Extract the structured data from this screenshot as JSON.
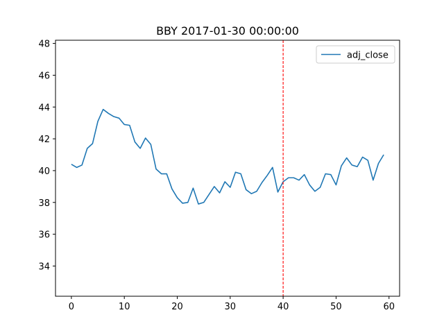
{
  "chart_data": {
    "type": "line",
    "title": "BBY 2017-01-30 00:00:00",
    "xlabel": "",
    "ylabel": "",
    "xlim": [
      -3,
      62
    ],
    "ylim": [
      32.1,
      48.2
    ],
    "xticks": [
      0,
      10,
      20,
      30,
      40,
      50,
      60
    ],
    "yticks": [
      34,
      36,
      38,
      40,
      42,
      44,
      46,
      48
    ],
    "grid": false,
    "legend_position": "top-right",
    "vline": {
      "x": 40,
      "color": "#ff0000",
      "style": "dashed"
    },
    "series": [
      {
        "name": "adj_close",
        "color": "#1f77b4",
        "x": [
          0,
          1,
          2,
          3,
          4,
          5,
          6,
          7,
          8,
          9,
          10,
          11,
          12,
          13,
          14,
          15,
          16,
          17,
          18,
          19,
          20,
          21,
          22,
          23,
          24,
          25,
          26,
          27,
          28,
          29,
          30,
          31,
          32,
          33,
          34,
          35,
          36,
          37,
          38,
          39,
          40,
          41,
          42,
          43,
          44,
          45,
          46,
          47,
          48,
          49,
          50,
          51,
          52,
          53,
          54,
          55,
          56,
          57,
          58,
          59
        ],
        "values": [
          40.4,
          40.2,
          40.35,
          41.4,
          41.7,
          43.1,
          43.85,
          43.6,
          43.4,
          43.3,
          42.9,
          42.85,
          41.8,
          41.4,
          42.05,
          41.65,
          40.1,
          39.8,
          39.8,
          38.85,
          38.3,
          37.95,
          38.0,
          38.9,
          37.9,
          38.0,
          38.5,
          39.0,
          38.6,
          39.3,
          38.95,
          39.9,
          39.8,
          38.8,
          38.55,
          38.7,
          39.25,
          39.7,
          40.2,
          38.65,
          39.3,
          39.55,
          39.55,
          39.4,
          39.75,
          39.1,
          38.7,
          38.95,
          39.8,
          39.75,
          39.1,
          40.3,
          40.8,
          40.35,
          40.25,
          40.85,
          40.65,
          39.4,
          40.45,
          41.0
        ]
      }
    ]
  }
}
